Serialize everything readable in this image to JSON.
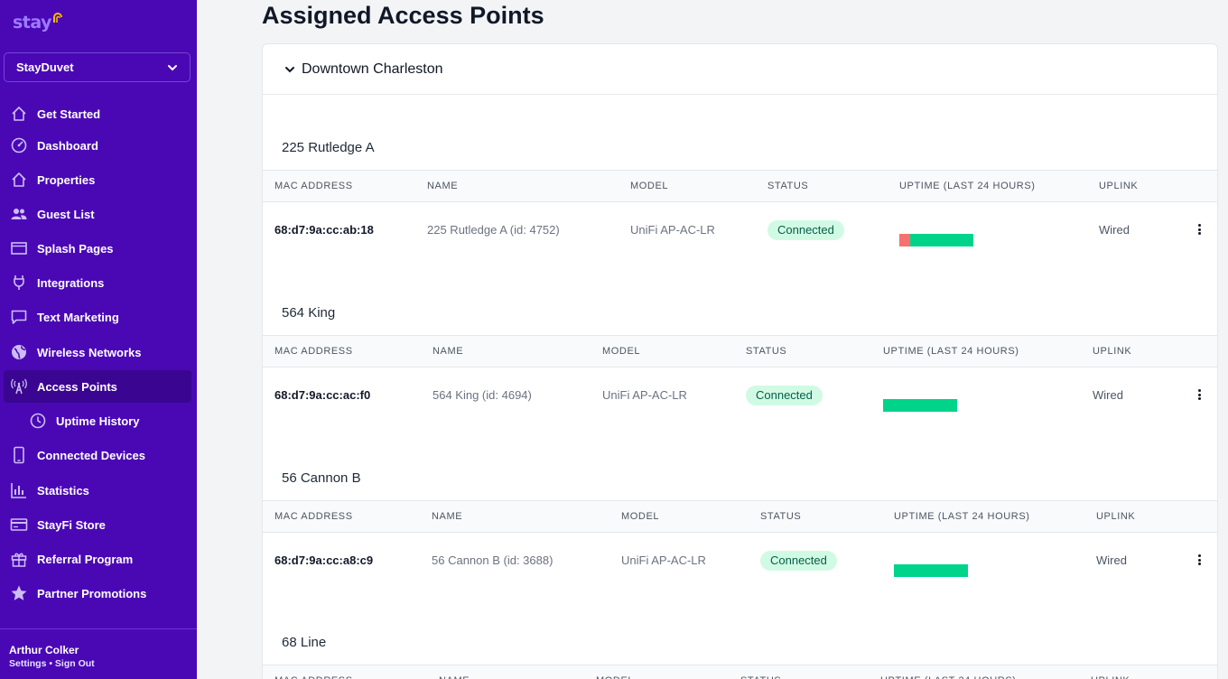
{
  "app": {
    "logo_text": "stay",
    "org_name": "StayDuvet"
  },
  "sidebar": {
    "items": [
      {
        "label": "Get Started",
        "icon": "home-icon"
      },
      {
        "label": "Dashboard",
        "icon": "gauge-icon"
      },
      {
        "label": "Properties",
        "icon": "building-icon"
      },
      {
        "label": "Guest List",
        "icon": "users-icon"
      },
      {
        "label": "Splash Pages",
        "icon": "browser-window-icon"
      },
      {
        "label": "Integrations",
        "icon": "plug-icon"
      },
      {
        "label": "Text Marketing",
        "icon": "chat-icon"
      },
      {
        "label": "Wireless Networks",
        "icon": "globe-icon"
      },
      {
        "label": "Access Points",
        "icon": "antenna-icon"
      },
      {
        "label": "Uptime History",
        "icon": "clock-icon"
      },
      {
        "label": "Connected Devices",
        "icon": "phone-icon"
      },
      {
        "label": "Statistics",
        "icon": "bar-chart-icon"
      },
      {
        "label": "StayFi Store",
        "icon": "credit-card-icon"
      },
      {
        "label": "Referral Program",
        "icon": "gift-icon"
      },
      {
        "label": "Partner Promotions",
        "icon": "star-icon"
      }
    ],
    "active": "Access Points"
  },
  "user": {
    "name": "Arthur Colker",
    "links": "Settings • Sign Out"
  },
  "page": {
    "title": "Assigned Access Points",
    "group": "Downtown Charleston"
  },
  "columns": {
    "mac": "MAC ADDRESS",
    "name": "NAME",
    "model": "MODEL",
    "status": "STATUS",
    "uptime": "UPTIME (LAST 24 HOURS)",
    "uplink": "UPLINK"
  },
  "properties": [
    {
      "title": "225 Rutledge A",
      "mac": "68:d7:9a:cc:ab:18",
      "name": "225 Rutledge A (id: 4752)",
      "model": "UniFi AP-AC-LR",
      "status": "Connected",
      "uptime_fraction": 0.85,
      "uplink": "Wired"
    },
    {
      "title": "564 King",
      "mac": "68:d7:9a:cc:ac:f0",
      "name": "564 King (id: 4694)",
      "model": "UniFi AP-AC-LR",
      "status": "Connected",
      "uptime_fraction": 1.0,
      "uplink": "Wired"
    },
    {
      "title": "56 Cannon B",
      "mac": "68:d7:9a:cc:a8:c9",
      "name": "56 Cannon B (id: 3688)",
      "model": "UniFi AP-AC-LR",
      "status": "Connected",
      "uptime_fraction": 1.0,
      "uplink": "Wired"
    },
    {
      "title": "68 Line",
      "mac": "",
      "name": "",
      "model": "",
      "status": "",
      "uptime_fraction": null,
      "uplink": ""
    }
  ],
  "colors": {
    "sidebar_bg": "#4a08b5",
    "sidebar_active": "#3a0691",
    "uptime_up": "#00d48a",
    "uptime_down": "#f87171",
    "badge_bg": "#d1fae5",
    "badge_text": "#065f46"
  }
}
